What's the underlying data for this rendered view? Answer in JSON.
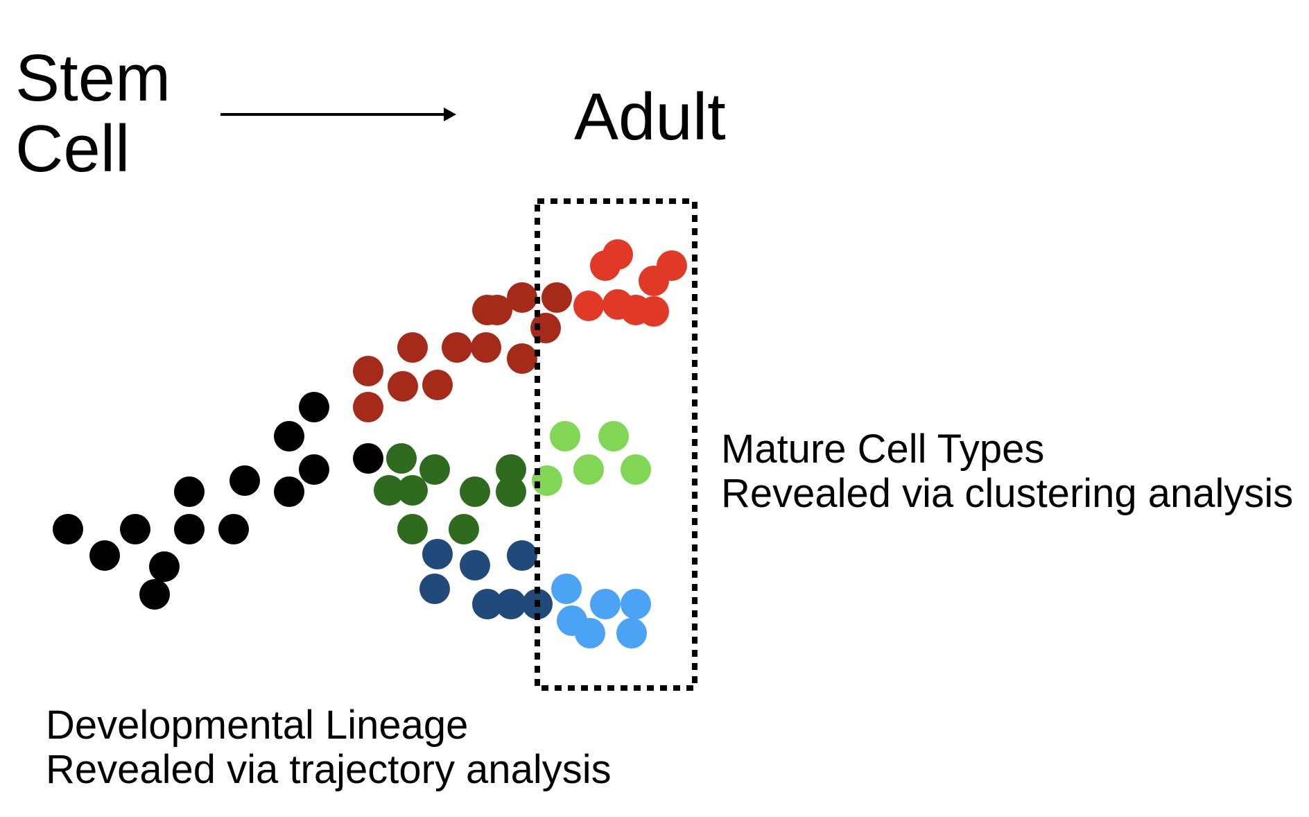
{
  "stem_label": [
    "Stem",
    "Cell"
  ],
  "adult_label": "Adult",
  "mature_caption": [
    "Mature Cell Types",
    "Revealed via clustering analysis"
  ],
  "lineage_caption": [
    "Developmental Lineage",
    "Revealed via trajectory analysis"
  ],
  "colors": {
    "stem": "#000000",
    "red_lineage": "#a52a1a",
    "red_mature": "#e03a27",
    "green_lineage": "#2e6b1f",
    "green_mature": "#82d655",
    "blue_lineage": "#1f4a7a",
    "blue_mature": "#4aa3f5",
    "box": "#000000"
  }
}
